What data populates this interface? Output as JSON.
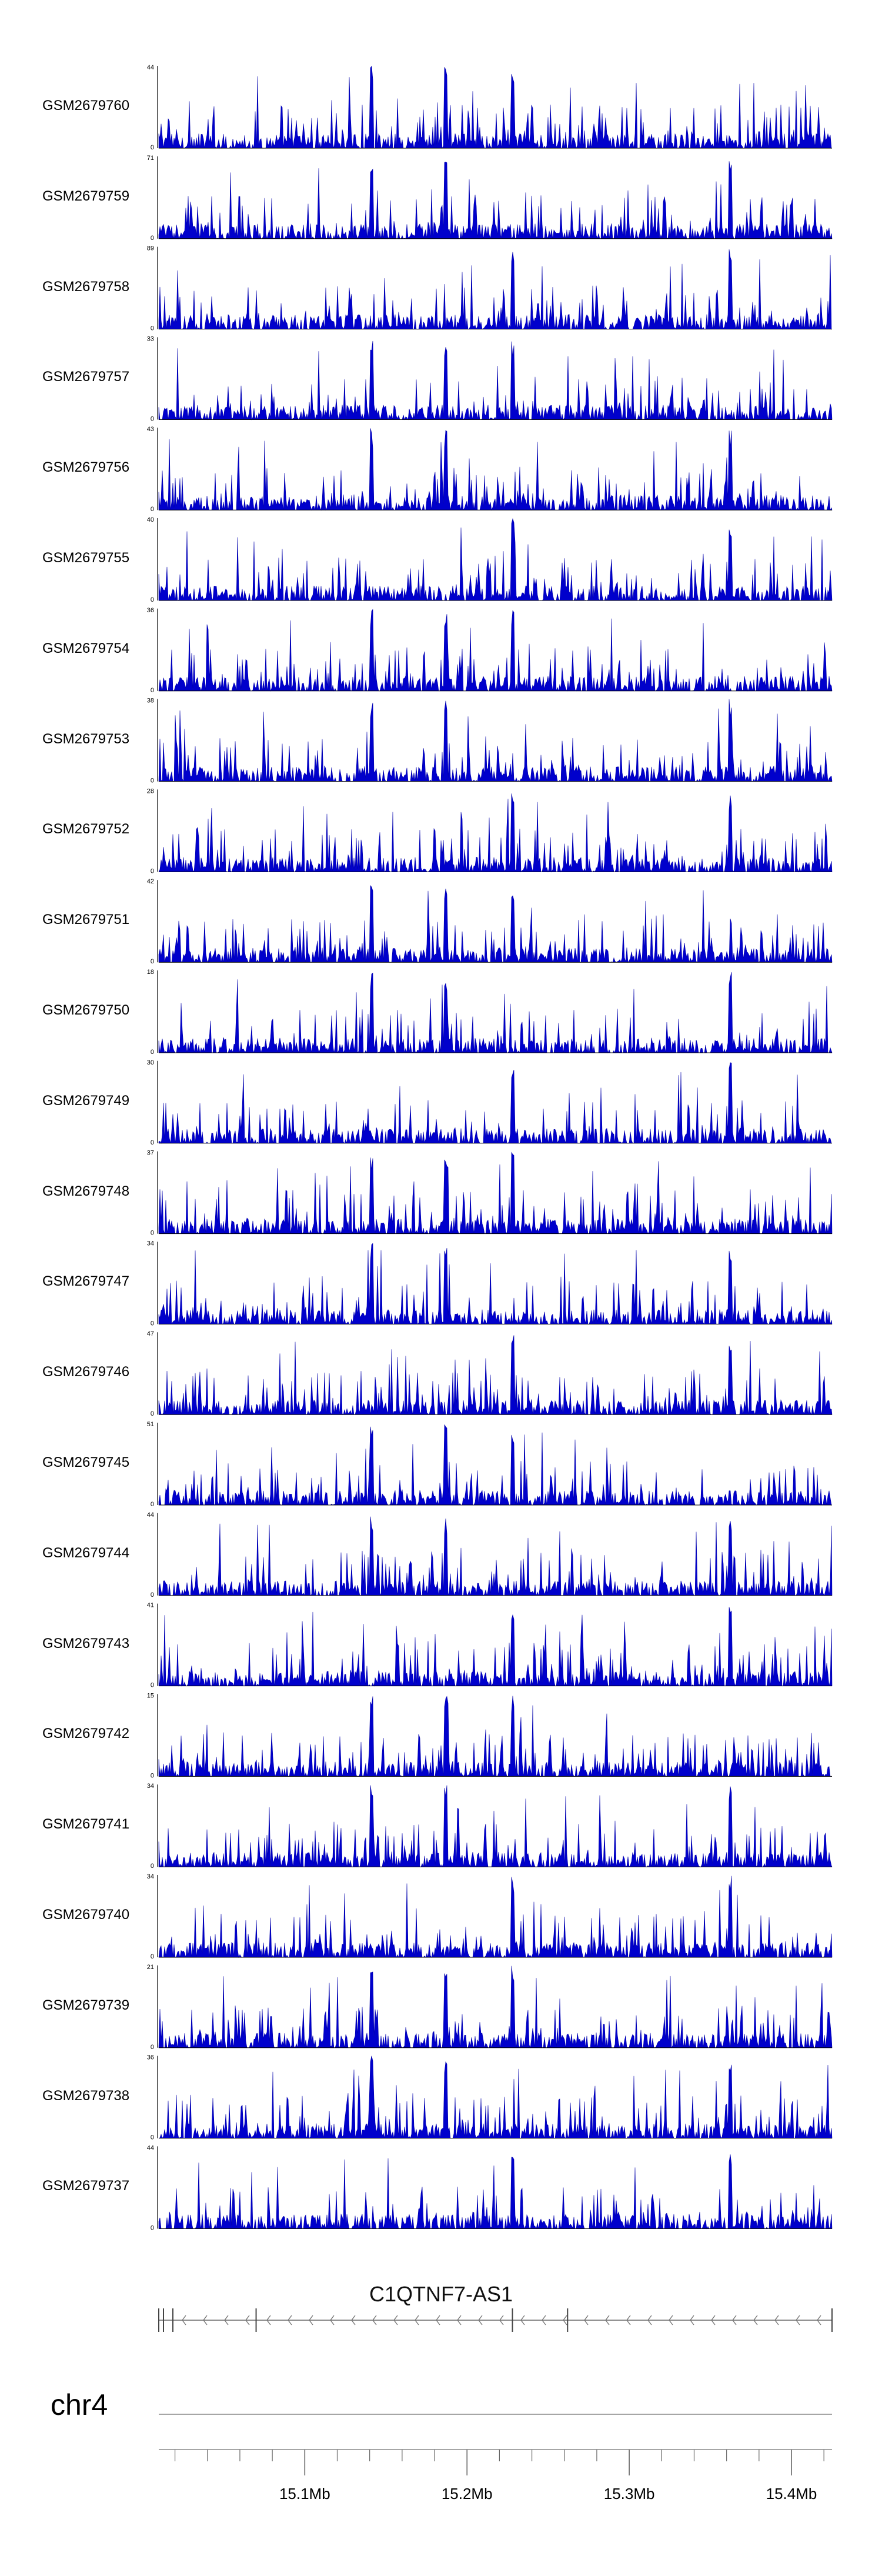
{
  "chart_data": {
    "type": "area",
    "chromosome": "chr4",
    "gene": {
      "name": "C1QTNF7-AS1",
      "strand": "-"
    },
    "xlim": [
      15010000,
      15425000
    ],
    "x_ticks": [
      {
        "value": 15100000,
        "label": "15.1Mb"
      },
      {
        "value": 15200000,
        "label": "15.2Mb"
      },
      {
        "value": 15300000,
        "label": "15.3Mb"
      },
      {
        "value": 15400000,
        "label": "15.4Mb"
      }
    ],
    "fill_color": "#0000CC",
    "stroke_color": "#0000AA",
    "series": [
      {
        "name": "GSM2679760",
        "ymax": 44,
        "ymax_label": "44",
        "ymin_label": "0"
      },
      {
        "name": "GSM2679759",
        "ymax": 71,
        "ymax_label": "71",
        "ymin_label": "0"
      },
      {
        "name": "GSM2679758",
        "ymax": 89,
        "ymax_label": "89",
        "ymin_label": "0"
      },
      {
        "name": "GSM2679757",
        "ymax": 33,
        "ymax_label": "33",
        "ymin_label": "0"
      },
      {
        "name": "GSM2679756",
        "ymax": 43,
        "ymax_label": "43",
        "ymin_label": "0"
      },
      {
        "name": "GSM2679755",
        "ymax": 40,
        "ymax_label": "40",
        "ymin_label": "0"
      },
      {
        "name": "GSM2679754",
        "ymax": 36,
        "ymax_label": "36",
        "ymin_label": "0"
      },
      {
        "name": "GSM2679753",
        "ymax": 38,
        "ymax_label": "38",
        "ymin_label": "0"
      },
      {
        "name": "GSM2679752",
        "ymax": 28,
        "ymax_label": "28",
        "ymin_label": "0"
      },
      {
        "name": "GSM2679751",
        "ymax": 42,
        "ymax_label": "42",
        "ymin_label": "0"
      },
      {
        "name": "GSM2679750",
        "ymax": 18,
        "ymax_label": "18",
        "ymin_label": "0"
      },
      {
        "name": "GSM2679749",
        "ymax": 30,
        "ymax_label": "30",
        "ymin_label": "0"
      },
      {
        "name": "GSM2679748",
        "ymax": 37,
        "ymax_label": "37",
        "ymin_label": "0"
      },
      {
        "name": "GSM2679747",
        "ymax": 34,
        "ymax_label": "34",
        "ymin_label": "0"
      },
      {
        "name": "GSM2679746",
        "ymax": 47,
        "ymax_label": "47",
        "ymin_label": "0"
      },
      {
        "name": "GSM2679745",
        "ymax": 51,
        "ymax_label": "51",
        "ymin_label": "0"
      },
      {
        "name": "GSM2679744",
        "ymax": 44,
        "ymax_label": "44",
        "ymin_label": "0"
      },
      {
        "name": "GSM2679743",
        "ymax": 41,
        "ymax_label": "41",
        "ymin_label": "0"
      },
      {
        "name": "GSM2679742",
        "ymax": 15,
        "ymax_label": "15",
        "ymin_label": "0"
      },
      {
        "name": "GSM2679741",
        "ymax": 34,
        "ymax_label": "34",
        "ymin_label": "0"
      },
      {
        "name": "GSM2679740",
        "ymax": 34,
        "ymax_label": "34",
        "ymin_label": "0"
      },
      {
        "name": "GSM2679739",
        "ymax": 21,
        "ymax_label": "21",
        "ymin_label": "0"
      },
      {
        "name": "GSM2679738",
        "ymax": 36,
        "ymax_label": "36",
        "ymin_label": "0"
      },
      {
        "name": "GSM2679737",
        "ymax": 44,
        "ymax_label": "44",
        "ymin_label": "0"
      }
    ]
  }
}
